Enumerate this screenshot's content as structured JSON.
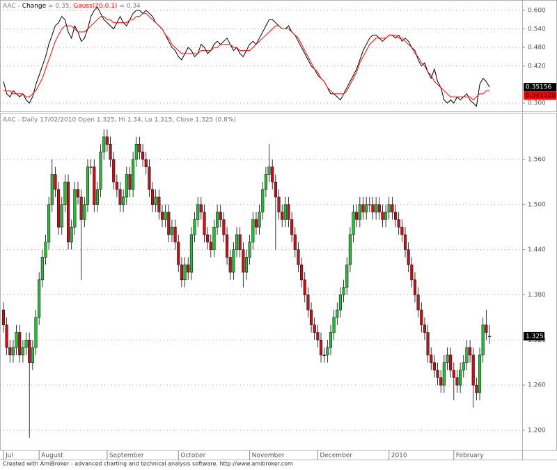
{
  "chart_data": [
    {
      "type": "line",
      "title": "AAC -",
      "series": [
        {
          "name": "Change",
          "legend_value": "= 0.35,",
          "last_label": "0.35156",
          "color": "#000000",
          "values": [
            0.37,
            0.33,
            0.32,
            0.34,
            0.33,
            0.32,
            0.33,
            0.31,
            0.3,
            0.32,
            0.36,
            0.39,
            0.42,
            0.45,
            0.49,
            0.52,
            0.55,
            0.56,
            0.58,
            0.57,
            0.53,
            0.51,
            0.55,
            0.53,
            0.5,
            0.51,
            0.54,
            0.58,
            0.6,
            0.61,
            0.59,
            0.57,
            0.56,
            0.55,
            0.54,
            0.56,
            0.58,
            0.56,
            0.55,
            0.57,
            0.59,
            0.6,
            0.6,
            0.59,
            0.6,
            0.59,
            0.58,
            0.56,
            0.55,
            0.54,
            0.52,
            0.5,
            0.48,
            0.47,
            0.45,
            0.44,
            0.46,
            0.48,
            0.47,
            0.45,
            0.46,
            0.49,
            0.48,
            0.46,
            0.47,
            0.49,
            0.5,
            0.49,
            0.5,
            0.51,
            0.49,
            0.47,
            0.48,
            0.46,
            0.45,
            0.47,
            0.49,
            0.5,
            0.49,
            0.51,
            0.53,
            0.55,
            0.57,
            0.57,
            0.56,
            0.55,
            0.54,
            0.54,
            0.55,
            0.53,
            0.52,
            0.5,
            0.48,
            0.46,
            0.44,
            0.42,
            0.41,
            0.39,
            0.38,
            0.37,
            0.35,
            0.33,
            0.33,
            0.32,
            0.31,
            0.33,
            0.35,
            0.37,
            0.39,
            0.41,
            0.44,
            0.47,
            0.49,
            0.51,
            0.52,
            0.52,
            0.51,
            0.5,
            0.51,
            0.52,
            0.52,
            0.51,
            0.52,
            0.5,
            0.51,
            0.5,
            0.48,
            0.47,
            0.44,
            0.42,
            0.43,
            0.4,
            0.38,
            0.41,
            0.37,
            0.35,
            0.31,
            0.3,
            0.31,
            0.3,
            0.32,
            0.31,
            0.32,
            0.33,
            0.31,
            0.3,
            0.29,
            0.36,
            0.38,
            0.37,
            0.35156
          ]
        },
        {
          "name": "Gauss(20,0.1)",
          "legend_value": "= 0.34",
          "last_label": "0.341328",
          "color": "#ff0000",
          "values": [
            0.34,
            0.34,
            0.34,
            0.33,
            0.33,
            0.33,
            0.33,
            0.32,
            0.32,
            0.33,
            0.34,
            0.36,
            0.38,
            0.41,
            0.44,
            0.47,
            0.5,
            0.52,
            0.54,
            0.55,
            0.55,
            0.55,
            0.54,
            0.53,
            0.53,
            0.53,
            0.54,
            0.55,
            0.56,
            0.57,
            0.58,
            0.58,
            0.57,
            0.57,
            0.56,
            0.56,
            0.56,
            0.56,
            0.56,
            0.57,
            0.57,
            0.58,
            0.58,
            0.59,
            0.59,
            0.58,
            0.57,
            0.56,
            0.55,
            0.54,
            0.52,
            0.51,
            0.49,
            0.48,
            0.47,
            0.46,
            0.46,
            0.46,
            0.46,
            0.46,
            0.46,
            0.47,
            0.47,
            0.47,
            0.47,
            0.48,
            0.48,
            0.49,
            0.49,
            0.49,
            0.49,
            0.48,
            0.48,
            0.47,
            0.47,
            0.47,
            0.47,
            0.48,
            0.49,
            0.5,
            0.51,
            0.52,
            0.53,
            0.54,
            0.55,
            0.55,
            0.54,
            0.54,
            0.54,
            0.53,
            0.52,
            0.51,
            0.49,
            0.47,
            0.45,
            0.43,
            0.41,
            0.4,
            0.38,
            0.37,
            0.35,
            0.34,
            0.33,
            0.33,
            0.33,
            0.33,
            0.34,
            0.36,
            0.38,
            0.4,
            0.43,
            0.45,
            0.47,
            0.49,
            0.5,
            0.51,
            0.51,
            0.51,
            0.51,
            0.52,
            0.52,
            0.52,
            0.51,
            0.51,
            0.5,
            0.49,
            0.48,
            0.46,
            0.45,
            0.43,
            0.42,
            0.4,
            0.39,
            0.37,
            0.36,
            0.35,
            0.34,
            0.33,
            0.32,
            0.32,
            0.32,
            0.32,
            0.32,
            0.32,
            0.32,
            0.31,
            0.32,
            0.33,
            0.33,
            0.34,
            0.341328
          ]
        }
      ],
      "xlim": [
        -1.07,
        160.1
      ],
      "ylim": [
        0.273,
        0.629
      ],
      "yticks": [
        {
          "value": 0.3,
          "label": "0.300"
        },
        {
          "value": 0.42,
          "label": "0.420"
        },
        {
          "value": 0.48,
          "label": "0.480"
        },
        {
          "value": 0.54,
          "label": "0.540"
        },
        {
          "value": 0.6,
          "label": "0.600"
        }
      ],
      "grid": true
    },
    {
      "type": "candlestick",
      "title": "AAC - Daily 17/02/2010 Open 1.325, Hi 1.34, Lo 1.315, Close 1.325 (0.8%)",
      "last_label": "1.325",
      "up_color": "#2db83d",
      "down_color": "#c0141c",
      "open": [
        1.36,
        1.34,
        1.31,
        1.3,
        1.31,
        1.33,
        1.3,
        1.31,
        1.32,
        1.29,
        1.31,
        1.35,
        1.4,
        1.43,
        1.45,
        1.5,
        1.54,
        1.52,
        1.47,
        1.5,
        1.53,
        1.45,
        1.47,
        1.52,
        1.51,
        1.48,
        1.5,
        1.55,
        1.55,
        1.5,
        1.52,
        1.57,
        1.59,
        1.58,
        1.56,
        1.53,
        1.52,
        1.5,
        1.51,
        1.54,
        1.52,
        1.56,
        1.58,
        1.57,
        1.56,
        1.55,
        1.52,
        1.5,
        1.51,
        1.49,
        1.48,
        1.49,
        1.46,
        1.47,
        1.45,
        1.42,
        1.4,
        1.42,
        1.41,
        1.46,
        1.48,
        1.5,
        1.49,
        1.46,
        1.45,
        1.44,
        1.47,
        1.49,
        1.48,
        1.46,
        1.43,
        1.41,
        1.44,
        1.46,
        1.44,
        1.41,
        1.43,
        1.45,
        1.48,
        1.47,
        1.49,
        1.52,
        1.54,
        1.55,
        1.53,
        1.51,
        1.49,
        1.48,
        1.5,
        1.48,
        1.46,
        1.44,
        1.42,
        1.4,
        1.38,
        1.36,
        1.34,
        1.33,
        1.32,
        1.3,
        1.3,
        1.31,
        1.33,
        1.35,
        1.36,
        1.38,
        1.39,
        1.42,
        1.46,
        1.49,
        1.48,
        1.5,
        1.49,
        1.5,
        1.5,
        1.49,
        1.5,
        1.49,
        1.48,
        1.49,
        1.5,
        1.49,
        1.48,
        1.47,
        1.46,
        1.44,
        1.42,
        1.4,
        1.38,
        1.36,
        1.34,
        1.33,
        1.3,
        1.29,
        1.28,
        1.27,
        1.26,
        1.29,
        1.3,
        1.28,
        1.27,
        1.26,
        1.28,
        1.29,
        1.31,
        1.3,
        1.26,
        1.25,
        1.3,
        1.34,
        1.325
      ],
      "high": [
        1.37,
        1.35,
        1.32,
        1.32,
        1.34,
        1.34,
        1.32,
        1.33,
        1.33,
        1.32,
        1.36,
        1.41,
        1.44,
        1.46,
        1.51,
        1.56,
        1.55,
        1.53,
        1.51,
        1.54,
        1.54,
        1.48,
        1.53,
        1.53,
        1.52,
        1.51,
        1.56,
        1.56,
        1.56,
        1.53,
        1.58,
        1.6,
        1.6,
        1.59,
        1.57,
        1.54,
        1.53,
        1.52,
        1.55,
        1.55,
        1.57,
        1.59,
        1.59,
        1.58,
        1.57,
        1.56,
        1.53,
        1.52,
        1.52,
        1.5,
        1.5,
        1.5,
        1.48,
        1.48,
        1.46,
        1.43,
        1.43,
        1.43,
        1.47,
        1.49,
        1.51,
        1.51,
        1.5,
        1.47,
        1.46,
        1.48,
        1.5,
        1.5,
        1.49,
        1.47,
        1.44,
        1.45,
        1.47,
        1.47,
        1.45,
        1.44,
        1.46,
        1.49,
        1.49,
        1.5,
        1.53,
        1.55,
        1.58,
        1.56,
        1.54,
        1.52,
        1.5,
        1.51,
        1.51,
        1.49,
        1.47,
        1.45,
        1.43,
        1.41,
        1.39,
        1.37,
        1.35,
        1.34,
        1.33,
        1.31,
        1.32,
        1.34,
        1.36,
        1.37,
        1.39,
        1.4,
        1.43,
        1.47,
        1.5,
        1.5,
        1.51,
        1.51,
        1.51,
        1.51,
        1.51,
        1.51,
        1.51,
        1.5,
        1.5,
        1.51,
        1.51,
        1.5,
        1.49,
        1.48,
        1.47,
        1.45,
        1.43,
        1.41,
        1.39,
        1.37,
        1.35,
        1.34,
        1.31,
        1.3,
        1.29,
        1.28,
        1.3,
        1.31,
        1.31,
        1.29,
        1.28,
        1.29,
        1.3,
        1.32,
        1.32,
        1.31,
        1.27,
        1.31,
        1.35,
        1.36,
        1.34
      ],
      "low": [
        1.33,
        1.3,
        1.29,
        1.29,
        1.3,
        1.29,
        1.29,
        1.3,
        1.19,
        1.28,
        1.3,
        1.34,
        1.39,
        1.42,
        1.44,
        1.49,
        1.51,
        1.46,
        1.46,
        1.49,
        1.44,
        1.44,
        1.46,
        1.5,
        1.4,
        1.47,
        1.49,
        1.54,
        1.49,
        1.49,
        1.51,
        1.56,
        1.57,
        1.55,
        1.52,
        1.51,
        1.49,
        1.49,
        1.5,
        1.51,
        1.51,
        1.55,
        1.56,
        1.55,
        1.54,
        1.51,
        1.49,
        1.49,
        1.48,
        1.47,
        1.47,
        1.45,
        1.45,
        1.44,
        1.41,
        1.39,
        1.39,
        1.4,
        1.4,
        1.45,
        1.47,
        1.48,
        1.45,
        1.44,
        1.43,
        1.43,
        1.46,
        1.47,
        1.45,
        1.42,
        1.4,
        1.4,
        1.43,
        1.43,
        1.39,
        1.4,
        1.42,
        1.44,
        1.46,
        1.46,
        1.48,
        1.51,
        1.53,
        1.52,
        1.44,
        1.48,
        1.47,
        1.47,
        1.47,
        1.45,
        1.43,
        1.41,
        1.39,
        1.37,
        1.35,
        1.33,
        1.32,
        1.31,
        1.29,
        1.29,
        1.29,
        1.3,
        1.32,
        1.34,
        1.35,
        1.37,
        1.38,
        1.41,
        1.45,
        1.47,
        1.47,
        1.48,
        1.48,
        1.49,
        1.48,
        1.48,
        1.48,
        1.47,
        1.47,
        1.48,
        1.48,
        1.47,
        1.46,
        1.45,
        1.43,
        1.41,
        1.39,
        1.37,
        1.35,
        1.33,
        1.32,
        1.29,
        1.28,
        1.27,
        1.26,
        1.25,
        1.25,
        1.28,
        1.27,
        1.24,
        1.25,
        1.25,
        1.27,
        1.28,
        1.29,
        1.23,
        1.24,
        1.24,
        1.29,
        1.32,
        1.315
      ],
      "close": [
        1.34,
        1.31,
        1.3,
        1.31,
        1.33,
        1.3,
        1.31,
        1.32,
        1.29,
        1.31,
        1.35,
        1.4,
        1.43,
        1.45,
        1.5,
        1.54,
        1.52,
        1.47,
        1.5,
        1.53,
        1.45,
        1.47,
        1.52,
        1.51,
        1.48,
        1.5,
        1.55,
        1.55,
        1.5,
        1.52,
        1.57,
        1.59,
        1.58,
        1.56,
        1.53,
        1.52,
        1.5,
        1.51,
        1.54,
        1.52,
        1.56,
        1.58,
        1.57,
        1.56,
        1.55,
        1.52,
        1.5,
        1.51,
        1.49,
        1.48,
        1.49,
        1.46,
        1.47,
        1.45,
        1.42,
        1.4,
        1.42,
        1.41,
        1.46,
        1.48,
        1.5,
        1.49,
        1.46,
        1.45,
        1.44,
        1.47,
        1.49,
        1.48,
        1.46,
        1.43,
        1.41,
        1.44,
        1.46,
        1.44,
        1.41,
        1.43,
        1.45,
        1.48,
        1.47,
        1.49,
        1.52,
        1.54,
        1.55,
        1.53,
        1.51,
        1.49,
        1.48,
        1.5,
        1.48,
        1.46,
        1.44,
        1.42,
        1.4,
        1.38,
        1.36,
        1.34,
        1.33,
        1.32,
        1.3,
        1.3,
        1.31,
        1.33,
        1.35,
        1.36,
        1.38,
        1.39,
        1.42,
        1.46,
        1.49,
        1.48,
        1.5,
        1.49,
        1.5,
        1.5,
        1.49,
        1.5,
        1.49,
        1.48,
        1.49,
        1.5,
        1.49,
        1.48,
        1.47,
        1.46,
        1.44,
        1.42,
        1.4,
        1.38,
        1.36,
        1.34,
        1.33,
        1.3,
        1.29,
        1.28,
        1.27,
        1.26,
        1.29,
        1.3,
        1.28,
        1.27,
        1.26,
        1.28,
        1.29,
        1.31,
        1.3,
        1.26,
        1.25,
        1.3,
        1.34,
        1.33,
        1.325
      ],
      "xlim": [
        -1.07,
        160.1
      ],
      "ylim": [
        1.175,
        1.621
      ],
      "xticks": [
        {
          "value": 0,
          "label": "Jul"
        },
        {
          "value": 11,
          "label": "August"
        },
        {
          "value": 32,
          "label": "September"
        },
        {
          "value": 54,
          "label": "October"
        },
        {
          "value": 76,
          "label": "November"
        },
        {
          "value": 97,
          "label": "December"
        },
        {
          "value": 119,
          "label": "2010"
        },
        {
          "value": 139,
          "label": "February"
        }
      ],
      "yticks": [
        {
          "value": 1.2,
          "label": "1.200"
        },
        {
          "value": 1.26,
          "label": "1.260"
        },
        {
          "value": 1.32,
          "label": "1.320"
        },
        {
          "value": 1.38,
          "label": "1.380"
        },
        {
          "value": 1.44,
          "label": "1.440"
        },
        {
          "value": 1.5,
          "label": "1.500"
        },
        {
          "value": 1.56,
          "label": "1.560"
        }
      ],
      "grid": true
    }
  ],
  "footer": "Created with AmiBroker - advanced charting and technical analysis software. http://www.amibroker.com"
}
